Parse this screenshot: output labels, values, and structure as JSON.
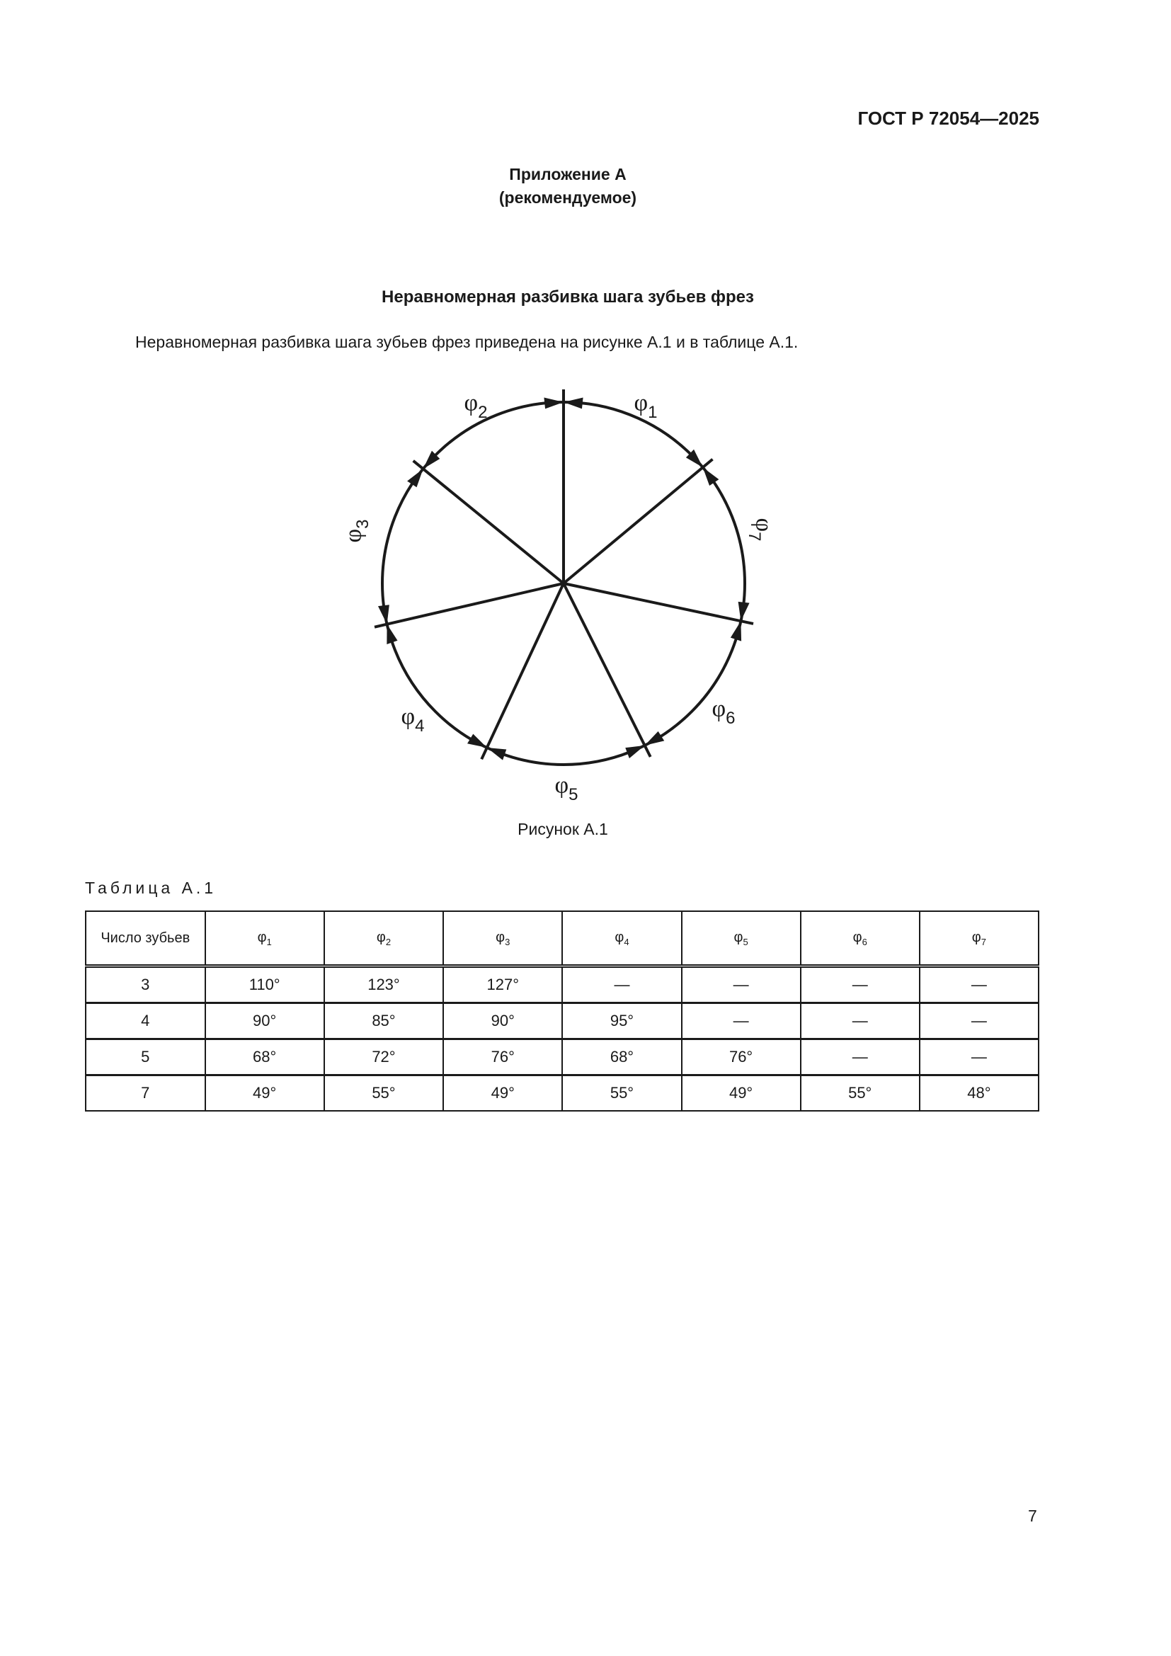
{
  "header": {
    "doc_id": "ГОСТ Р 72054—2025"
  },
  "annex": {
    "title": "Приложение А",
    "status": "(рекомендуемое)"
  },
  "section_title": "Неравномерная разбивка шага зубьев фрез",
  "intro": "Неравномерная разбивка шага зубьев фрез приведена на рисунке А.1 и в таблице А.1.",
  "figure": {
    "caption": "Рисунок А.1",
    "labels": [
      {
        "sym": "φ",
        "sub": "1"
      },
      {
        "sym": "φ",
        "sub": "2"
      },
      {
        "sym": "φ",
        "sub": "3"
      },
      {
        "sym": "φ",
        "sub": "4"
      },
      {
        "sym": "φ",
        "sub": "5"
      },
      {
        "sym": "φ",
        "sub": "6"
      },
      {
        "sym": "φ",
        "sub": "7"
      }
    ]
  },
  "table": {
    "label": "Таблица А.1",
    "headers": [
      {
        "text": "Число зубьев"
      },
      {
        "sym": "φ",
        "sub": "1"
      },
      {
        "sym": "φ",
        "sub": "2"
      },
      {
        "sym": "φ",
        "sub": "3"
      },
      {
        "sym": "φ",
        "sub": "4"
      },
      {
        "sym": "φ",
        "sub": "5"
      },
      {
        "sym": "φ",
        "sub": "6"
      },
      {
        "sym": "φ",
        "sub": "7"
      }
    ],
    "rows": [
      [
        "3",
        "110°",
        "123°",
        "127°",
        "—",
        "—",
        "—",
        "—"
      ],
      [
        "4",
        "90°",
        "85°",
        "90°",
        "95°",
        "—",
        "—",
        "—"
      ],
      [
        "5",
        "68°",
        "72°",
        "76°",
        "68°",
        "76°",
        "—",
        "—"
      ],
      [
        "7",
        "49°",
        "55°",
        "49°",
        "55°",
        "49°",
        "55°",
        "48°"
      ]
    ]
  },
  "page_number": "7"
}
